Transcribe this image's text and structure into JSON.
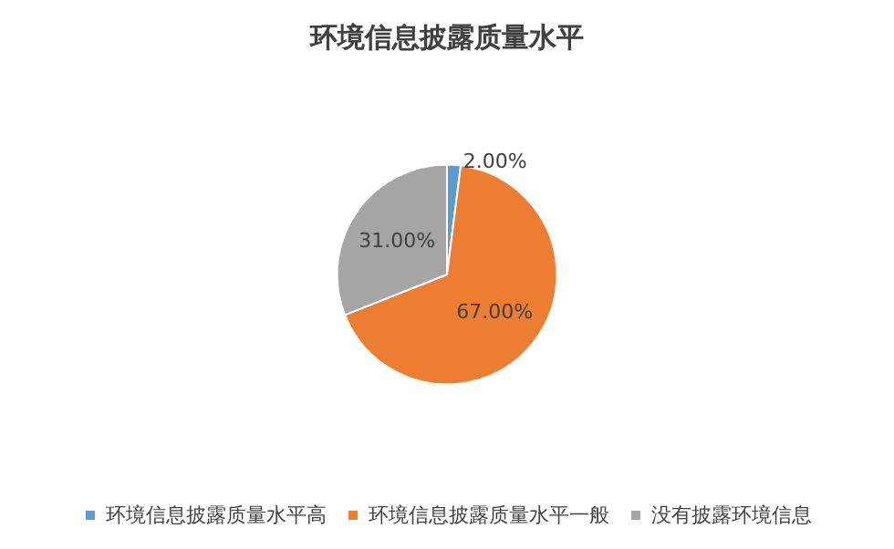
{
  "chart_data": {
    "type": "pie",
    "title": "环境信息披露质量水平",
    "categories": [
      "环境信息披露质量水平高",
      "环境信息披露质量水平一般",
      "没有披露环境信息"
    ],
    "values": [
      2,
      67,
      31
    ],
    "colors": [
      "#5b9bd5",
      "#ed7d31",
      "#a5a5a5"
    ],
    "value_labels": [
      "2.00%",
      "67.00%",
      "31.00%"
    ],
    "legend": "bottom"
  }
}
